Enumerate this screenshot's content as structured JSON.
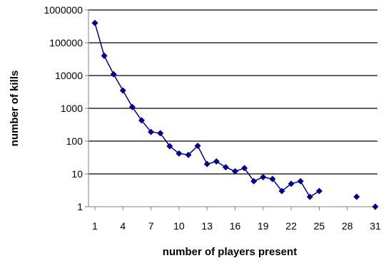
{
  "chart_data": {
    "type": "line",
    "title": "",
    "xlabel": "number of players present",
    "ylabel": "number of kills",
    "y_scale": "log",
    "ylim": [
      1,
      1000000
    ],
    "xlim": [
      1,
      31
    ],
    "grid": "horizontal",
    "legend": "none",
    "colors": {
      "series": "#00008B",
      "grid": "#000000",
      "axis": "#808080"
    },
    "y_ticks": [
      {
        "value": 1,
        "label": "1"
      },
      {
        "value": 10,
        "label": "10"
      },
      {
        "value": 100,
        "label": "100"
      },
      {
        "value": 1000,
        "label": "1000"
      },
      {
        "value": 10000,
        "label": "10000"
      },
      {
        "value": 100000,
        "label": "100000"
      },
      {
        "value": 1000000,
        "label": "1000000"
      }
    ],
    "x_ticks": [
      {
        "value": 1,
        "label": "1"
      },
      {
        "value": 4,
        "label": "4"
      },
      {
        "value": 7,
        "label": "7"
      },
      {
        "value": 10,
        "label": "10"
      },
      {
        "value": 13,
        "label": "13"
      },
      {
        "value": 16,
        "label": "16"
      },
      {
        "value": 19,
        "label": "19"
      },
      {
        "value": 22,
        "label": "22"
      },
      {
        "value": 25,
        "label": "25"
      },
      {
        "value": 28,
        "label": "28"
      },
      {
        "value": 31,
        "label": "31"
      }
    ],
    "series": [
      {
        "points": [
          [
            1,
            400000
          ],
          [
            2,
            40000
          ],
          [
            3,
            11000
          ],
          [
            4,
            3500
          ],
          [
            5,
            1100
          ],
          [
            6,
            430
          ],
          [
            7,
            190
          ],
          [
            8,
            175
          ],
          [
            9,
            70
          ],
          [
            10,
            42
          ],
          [
            11,
            38
          ],
          [
            12,
            72
          ],
          [
            13,
            20
          ],
          [
            14,
            24
          ],
          [
            15,
            16
          ],
          [
            16,
            12
          ],
          [
            17,
            15
          ],
          [
            18,
            6
          ],
          [
            19,
            8
          ],
          [
            20,
            7
          ],
          [
            21,
            3
          ],
          [
            22,
            5
          ],
          [
            23,
            6
          ],
          [
            24,
            2
          ],
          [
            25,
            3
          ],
          [
            29,
            2
          ],
          [
            31,
            1
          ]
        ],
        "segments": [
          [
            0,
            24
          ]
        ]
      }
    ]
  }
}
